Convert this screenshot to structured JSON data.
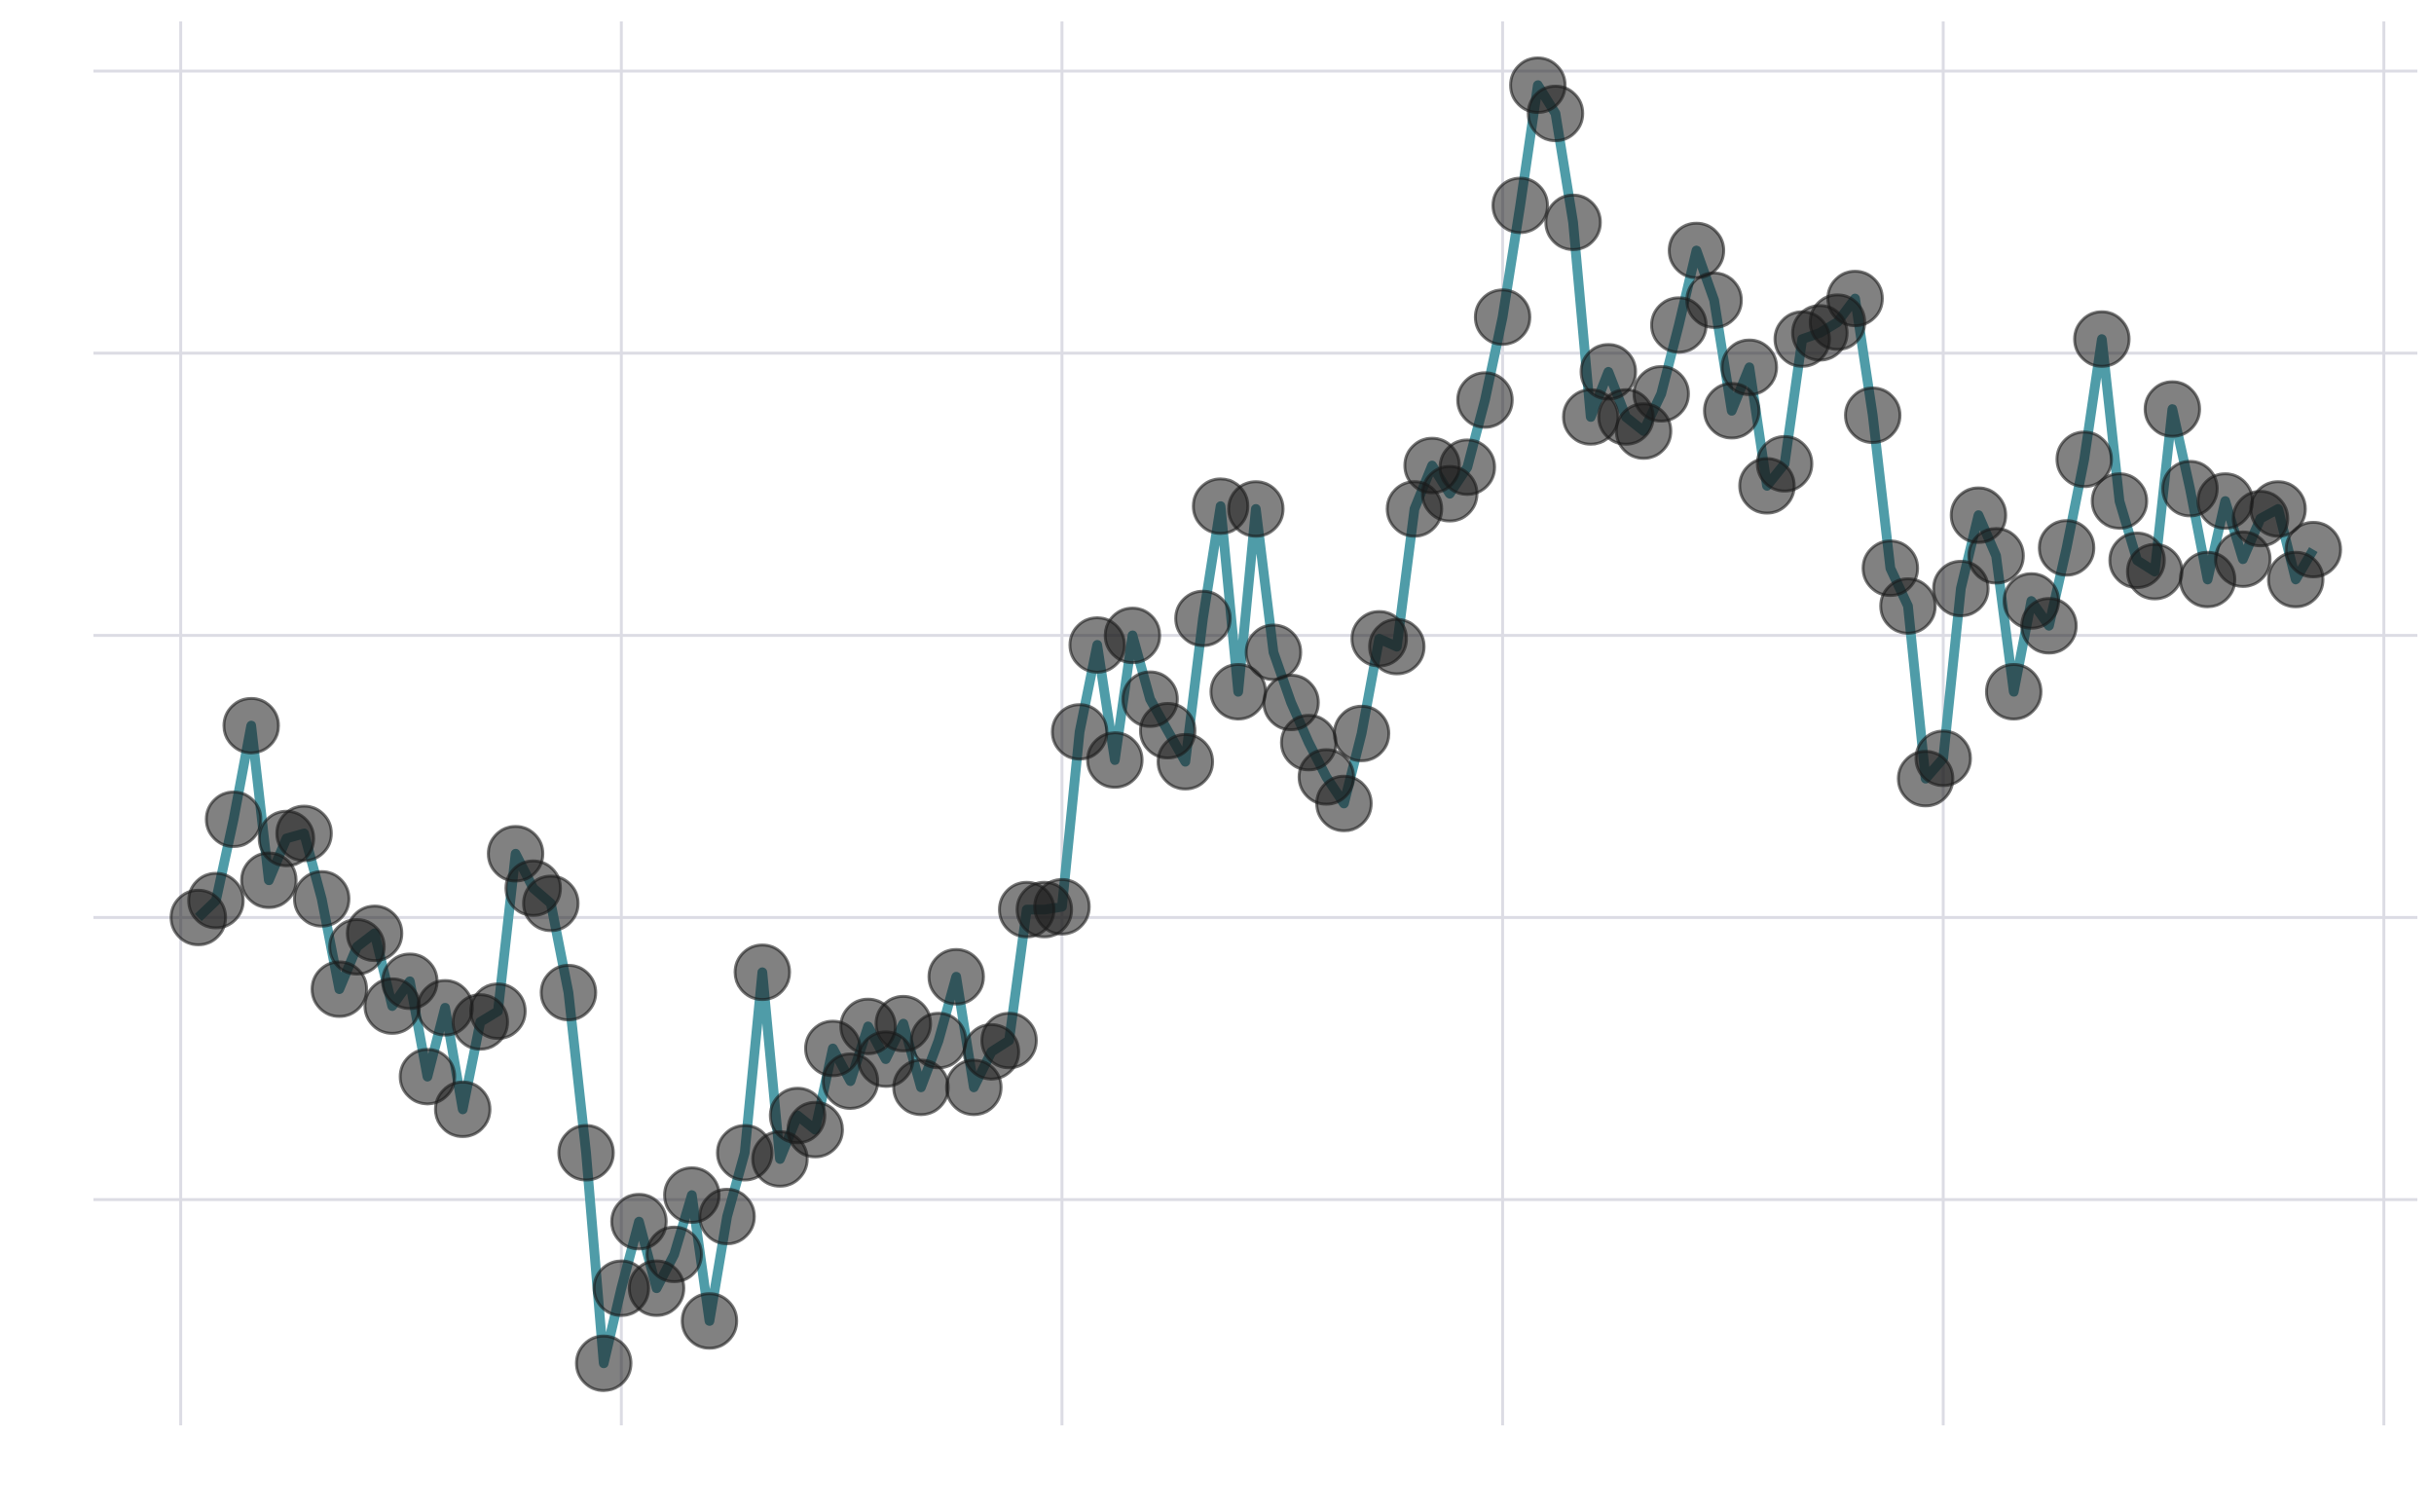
{
  "chart_data": {
    "type": "line",
    "x": [
      1,
      2,
      3,
      4,
      5,
      6,
      7,
      8,
      9,
      10,
      11,
      12,
      13,
      14,
      15,
      16,
      17,
      18,
      19,
      20,
      21,
      22,
      23,
      24,
      25,
      26,
      27,
      28,
      29,
      30,
      31,
      32,
      33,
      34,
      35,
      36,
      37,
      38,
      39,
      40,
      41,
      42,
      43,
      44,
      45,
      46,
      47,
      48,
      49,
      50,
      51,
      52,
      53,
      54,
      55,
      56,
      57,
      58,
      59,
      60,
      61,
      62,
      63,
      64,
      65,
      66,
      67,
      68,
      69,
      70,
      71,
      72,
      73,
      74,
      75,
      76,
      77,
      78,
      79,
      80,
      81,
      82,
      83,
      84,
      85,
      86,
      87,
      88,
      89,
      90,
      91,
      92,
      93,
      94,
      95,
      96,
      97,
      98,
      99,
      100,
      101,
      102,
      103,
      104,
      105,
      106,
      107,
      108,
      109,
      110,
      111,
      112,
      113,
      114,
      115,
      116,
      117,
      118,
      119,
      120,
      121
    ],
    "series": [
      {
        "color": "#4f9ca8",
        "point_color": "#1a1a1a",
        "values": [
          0,
          0.3,
          1.74,
          3.4,
          0.66,
          1.4,
          1.49,
          0.33,
          -1.27,
          -0.52,
          -0.28,
          -1.57,
          -1.13,
          -2.82,
          -1.6,
          -3.4,
          -1.85,
          -1.66,
          1.13,
          0.52,
          0.25,
          -1.33,
          -4.17,
          -7.9,
          -6.57,
          -5.39,
          -6.57,
          -5.97,
          -4.92,
          -7.15,
          -5.3,
          -4.17,
          -0.97,
          -4.28,
          -3.51,
          -3.76,
          -2.32,
          -2.9,
          -1.93,
          -2.51,
          -1.88,
          -3.01,
          -2.18,
          -1.05,
          -3.01,
          -2.38,
          -2.18,
          0.14,
          0.14,
          0.19,
          3.29,
          4.83,
          2.79,
          5,
          3.87,
          3.31,
          2.76,
          5.3,
          7.29,
          4.0,
          7.24,
          4.7,
          3.81,
          3.1,
          2.49,
          2.02,
          3.26,
          4.94,
          4.8,
          7.24,
          8.01,
          7.51,
          7.98,
          9.17,
          10.64,
          12.62,
          14.75,
          14.25,
          12.32,
          8.87,
          9.67,
          8.87,
          8.62,
          9.28,
          10.5,
          11.82,
          10.94,
          8.98,
          9.75,
          7.65,
          8.04,
          10.25,
          10.36,
          10.55,
          10.97,
          8.9,
          6.19,
          5.52,
          2.46,
          2.82,
          5.83,
          7.13,
          6.41,
          4.0,
          5.61,
          5.17,
          6.55,
          8.12,
          10.25,
          7.38,
          6.33,
          6.13,
          9.01,
          7.6,
          5.99,
          7.38,
          6.35,
          7.07,
          7.24,
          5.99,
          6.52
        ]
      }
    ],
    "xlim": [
      -4.95,
      126.9
    ],
    "xticks": [
      0,
      25,
      50,
      75,
      100,
      125
    ],
    "ylim": [
      -9.0,
      15.88
    ],
    "yticks": [
      -5,
      0,
      5,
      10,
      15
    ],
    "grid": true
  }
}
